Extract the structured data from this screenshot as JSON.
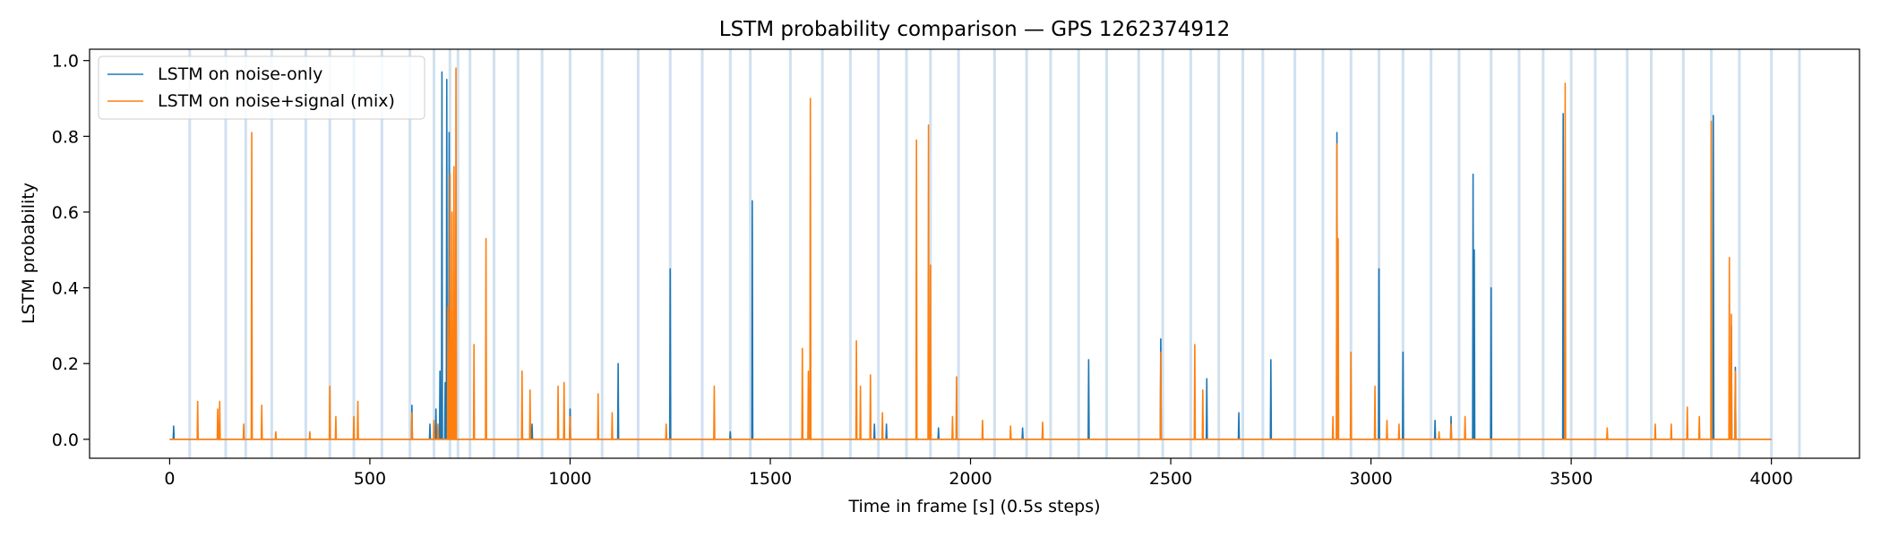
{
  "chart_data": {
    "type": "line",
    "title": "LSTM probability comparison — GPS 1262374912",
    "xlabel": "Time in frame [s] (0.5s steps)",
    "ylabel": "LSTM probability",
    "xlim": [
      -200,
      4220
    ],
    "ylim": [
      -0.05,
      1.03
    ],
    "xticks": [
      0,
      500,
      1000,
      1500,
      2000,
      2500,
      3000,
      3500,
      4000
    ],
    "yticks": [
      "0.0",
      "0.2",
      "0.4",
      "0.6",
      "0.8",
      "1.0"
    ],
    "ytick_values": [
      0.0,
      0.2,
      0.4,
      0.6,
      0.8,
      1.0
    ],
    "grid": false,
    "legend_location": "upper-left",
    "shaded_markers_x": [
      50,
      140,
      190,
      255,
      340,
      400,
      460,
      530,
      600,
      660,
      700,
      720,
      750,
      810,
      870,
      930,
      1000,
      1080,
      1170,
      1250,
      1330,
      1400,
      1450,
      1550,
      1630,
      1700,
      1770,
      1840,
      1900,
      1970,
      2060,
      2140,
      2200,
      2270,
      2340,
      2420,
      2480,
      2550,
      2620,
      2680,
      2730,
      2810,
      2880,
      2950,
      3020,
      3080,
      3150,
      3220,
      3300,
      3370,
      3430,
      3500,
      3560,
      3640,
      3700,
      3780,
      3850,
      3920,
      4000,
      4070
    ],
    "series": [
      {
        "name": "LSTM on noise-only",
        "color": "#1f77b4",
        "peaks": [
          [
            10,
            0.035
          ],
          [
            605,
            0.09
          ],
          [
            650,
            0.04
          ],
          [
            665,
            0.08
          ],
          [
            675,
            0.18
          ],
          [
            680,
            0.97
          ],
          [
            688,
            0.15
          ],
          [
            692,
            0.95
          ],
          [
            698,
            0.81
          ],
          [
            880,
            0.035
          ],
          [
            905,
            0.04
          ],
          [
            1000,
            0.08
          ],
          [
            1120,
            0.2
          ],
          [
            1250,
            0.45
          ],
          [
            1400,
            0.02
          ],
          [
            1455,
            0.63
          ],
          [
            1760,
            0.04
          ],
          [
            1790,
            0.04
          ],
          [
            1920,
            0.03
          ],
          [
            2130,
            0.03
          ],
          [
            2295,
            0.21
          ],
          [
            2475,
            0.265
          ],
          [
            2590,
            0.16
          ],
          [
            2670,
            0.07
          ],
          [
            2750,
            0.21
          ],
          [
            2915,
            0.81
          ],
          [
            3020,
            0.45
          ],
          [
            3080,
            0.23
          ],
          [
            3160,
            0.05
          ],
          [
            3200,
            0.06
          ],
          [
            3255,
            0.7
          ],
          [
            3258,
            0.5
          ],
          [
            3300,
            0.4
          ],
          [
            3480,
            0.86
          ],
          [
            3855,
            0.855
          ],
          [
            3900,
            0.3
          ],
          [
            3910,
            0.19
          ]
        ]
      },
      {
        "name": "LSTM on noise+signal (mix)",
        "color": "#ff7f0e",
        "peaks": [
          [
            70,
            0.1
          ],
          [
            120,
            0.08
          ],
          [
            125,
            0.1
          ],
          [
            185,
            0.04
          ],
          [
            205,
            0.81
          ],
          [
            230,
            0.09
          ],
          [
            265,
            0.02
          ],
          [
            350,
            0.02
          ],
          [
            400,
            0.14
          ],
          [
            415,
            0.06
          ],
          [
            460,
            0.06
          ],
          [
            470,
            0.1
          ],
          [
            605,
            0.07
          ],
          [
            660,
            0.05
          ],
          [
            670,
            0.04
          ],
          [
            695,
            0.35
          ],
          [
            700,
            0.7
          ],
          [
            705,
            0.6
          ],
          [
            710,
            0.72
          ],
          [
            715,
            0.98
          ],
          [
            760,
            0.25
          ],
          [
            790,
            0.53
          ],
          [
            880,
            0.18
          ],
          [
            900,
            0.13
          ],
          [
            970,
            0.14
          ],
          [
            985,
            0.15
          ],
          [
            1000,
            0.06
          ],
          [
            1070,
            0.12
          ],
          [
            1105,
            0.07
          ],
          [
            1240,
            0.04
          ],
          [
            1360,
            0.14
          ],
          [
            1580,
            0.24
          ],
          [
            1595,
            0.18
          ],
          [
            1600,
            0.9
          ],
          [
            1715,
            0.26
          ],
          [
            1725,
            0.14
          ],
          [
            1750,
            0.17
          ],
          [
            1780,
            0.07
          ],
          [
            1865,
            0.79
          ],
          [
            1895,
            0.83
          ],
          [
            1900,
            0.46
          ],
          [
            1955,
            0.06
          ],
          [
            1965,
            0.165
          ],
          [
            2030,
            0.05
          ],
          [
            2100,
            0.035
          ],
          [
            2180,
            0.045
          ],
          [
            2475,
            0.23
          ],
          [
            2560,
            0.25
          ],
          [
            2580,
            0.13
          ],
          [
            2905,
            0.06
          ],
          [
            2915,
            0.78
          ],
          [
            2918,
            0.53
          ],
          [
            2950,
            0.23
          ],
          [
            3010,
            0.14
          ],
          [
            3040,
            0.05
          ],
          [
            3070,
            0.04
          ],
          [
            3170,
            0.02
          ],
          [
            3200,
            0.04
          ],
          [
            3235,
            0.06
          ],
          [
            3485,
            0.94
          ],
          [
            3590,
            0.03
          ],
          [
            3710,
            0.04
          ],
          [
            3750,
            0.04
          ],
          [
            3790,
            0.085
          ],
          [
            3820,
            0.06
          ],
          [
            3850,
            0.84
          ],
          [
            3895,
            0.48
          ],
          [
            3900,
            0.33
          ],
          [
            3910,
            0.18
          ]
        ]
      }
    ]
  }
}
